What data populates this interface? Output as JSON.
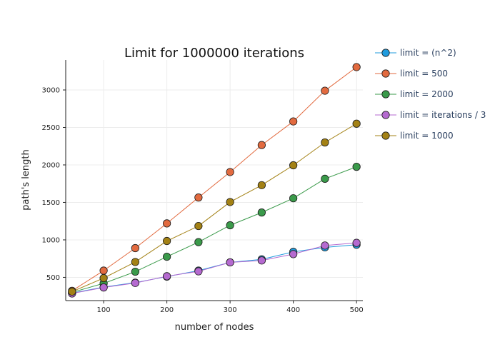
{
  "chart_data": {
    "type": "line",
    "title": "Limit for 1000000 iterations",
    "xlabel": "number of nodes",
    "ylabel": "path's length",
    "xlim": [
      40,
      510
    ],
    "ylim": [
      190,
      3400
    ],
    "xticks": [
      100,
      200,
      300,
      400,
      500
    ],
    "yticks": [
      500,
      1000,
      1500,
      2000,
      2500,
      3000
    ],
    "grid": true,
    "legend_position": "right",
    "x": [
      50,
      100,
      150,
      200,
      250,
      300,
      350,
      400,
      450,
      500
    ],
    "series": [
      {
        "name": "limit = (n^2)",
        "color": "#1f9bde",
        "values": [
          290,
          370,
          430,
          510,
          590,
          700,
          740,
          840,
          900,
          935
        ]
      },
      {
        "name": "limit = 500",
        "color": "#e26a3f",
        "values": [
          320,
          590,
          890,
          1220,
          1565,
          1905,
          2265,
          2580,
          2990,
          3305
        ]
      },
      {
        "name": "limit = 2000",
        "color": "#3a9a4a",
        "values": [
          300,
          420,
          575,
          775,
          970,
          1195,
          1365,
          1555,
          1815,
          1975
        ]
      },
      {
        "name": "limit = iterations / 3",
        "color": "#b56ad0",
        "values": [
          285,
          365,
          425,
          515,
          580,
          700,
          725,
          810,
          925,
          960
        ]
      },
      {
        "name": "limit = 1000",
        "color": "#a38114",
        "values": [
          310,
          490,
          705,
          985,
          1185,
          1505,
          1730,
          1995,
          2300,
          2550
        ]
      }
    ]
  }
}
